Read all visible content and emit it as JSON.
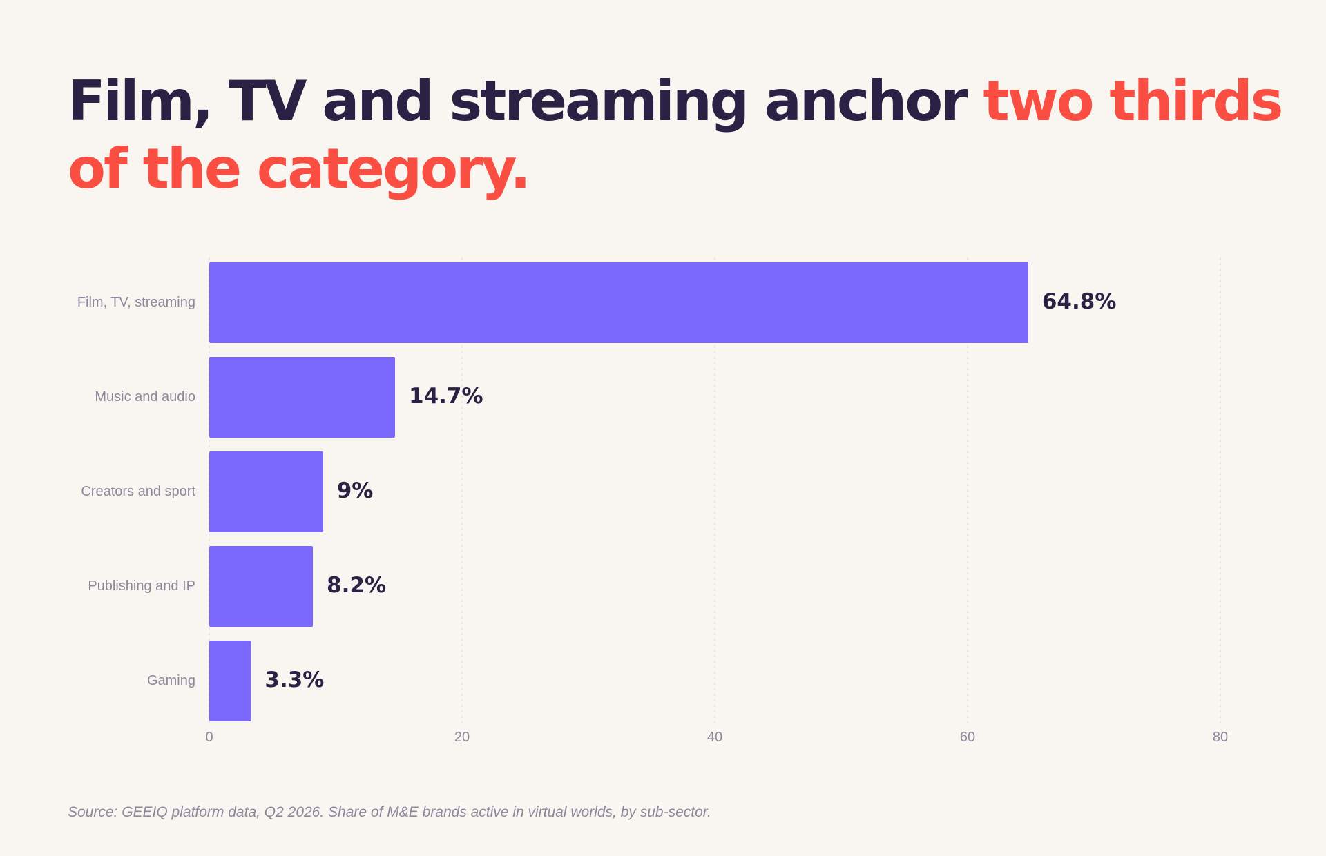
{
  "headline": {
    "part1": "Film, TV and streaming anchor ",
    "part2": "two thirds of the category."
  },
  "colors": {
    "background": "#f9f6f2",
    "headline": "#2a2145",
    "accent": "#fa4e43",
    "bar": "#7b69fd",
    "value_label": "#2a2145",
    "category_label": "#8e879c",
    "tick_label": "#8e879c",
    "grid": "#e4e0db"
  },
  "chart_data": {
    "type": "bar",
    "orientation": "horizontal",
    "categories": [
      "Film, TV, streaming",
      "Music and audio",
      "Creators and sport",
      "Publishing and IP",
      "Gaming"
    ],
    "values": [
      64.8,
      14.7,
      9,
      8.2,
      3.3
    ],
    "value_labels": [
      "64.8%",
      "14.7%",
      "9%",
      "8.2%",
      "3.3%"
    ],
    "xlim": [
      0,
      80
    ],
    "xticks": [
      0,
      20,
      40,
      60,
      80
    ],
    "grid": "vertical dashed",
    "legend": "none"
  },
  "source": "Source: GEEIQ platform data, Q2 2026. Share of M&E brands active in virtual worlds, by sub-sector."
}
